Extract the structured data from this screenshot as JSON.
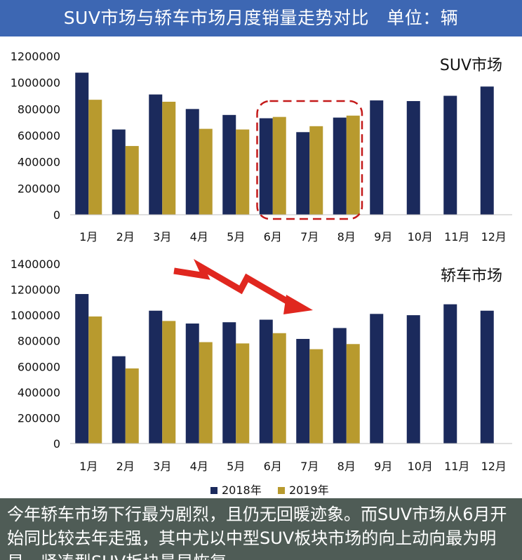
{
  "header": {
    "title": "SUV市场与轿车市场月度销量走势对比   单位：辆"
  },
  "legend": {
    "items": [
      {
        "label": "2018年",
        "color": "#1b2a5c"
      },
      {
        "label": "2019年",
        "color": "#b89a2e"
      }
    ]
  },
  "footer": {
    "text": "今年轿车市场下行最为剧烈，且仍无回暖迹象。而SUV市场从6月开始同比较去年走强，其中尤以中型SUV板块市场的向上动向最为明显，紧凑型SUV板块最早恢复"
  },
  "colors": {
    "header_bg": "#3d67b3",
    "footer_bg": "#4f5c56",
    "series_2018": "#1b2a5c",
    "series_2019": "#b89a2e",
    "highlight_box": "#c41a1a",
    "trend_arrow": "#e0271f"
  },
  "chart_data": [
    {
      "type": "bar",
      "label": "SUV市场",
      "categories": [
        "1月",
        "2月",
        "3月",
        "4月",
        "5月",
        "6月",
        "7月",
        "8月",
        "9月",
        "10月",
        "11月",
        "12月"
      ],
      "series": [
        {
          "name": "2018年",
          "values": [
            1075000,
            645000,
            910000,
            800000,
            755000,
            730000,
            625000,
            735000,
            865000,
            860000,
            900000,
            970000
          ]
        },
        {
          "name": "2019年",
          "values": [
            870000,
            520000,
            855000,
            650000,
            645000,
            740000,
            670000,
            750000,
            null,
            null,
            null,
            null
          ]
        }
      ],
      "ylim": [
        0,
        1200000
      ],
      "yticks": [
        "0",
        "200000",
        "400000",
        "600000",
        "800000",
        "1000000",
        "1200000"
      ],
      "highlight": [
        "6月",
        "8月"
      ]
    },
    {
      "type": "bar",
      "label": "轿车市场",
      "categories": [
        "1月",
        "2月",
        "3月",
        "4月",
        "5月",
        "6月",
        "7月",
        "8月",
        "9月",
        "10月",
        "11月",
        "12月"
      ],
      "series": [
        {
          "name": "2018年",
          "values": [
            1165000,
            680000,
            1035000,
            935000,
            945000,
            965000,
            815000,
            900000,
            1010000,
            1000000,
            1085000,
            1035000
          ]
        },
        {
          "name": "2019年",
          "values": [
            990000,
            585000,
            955000,
            790000,
            780000,
            860000,
            735000,
            775000,
            null,
            null,
            null,
            null
          ]
        }
      ],
      "ylim": [
        0,
        1400000
      ],
      "yticks": [
        "0",
        "200000",
        "400000",
        "600000",
        "800000",
        "1000000",
        "1200000",
        "1400000"
      ],
      "trend_arrow": "down"
    }
  ]
}
